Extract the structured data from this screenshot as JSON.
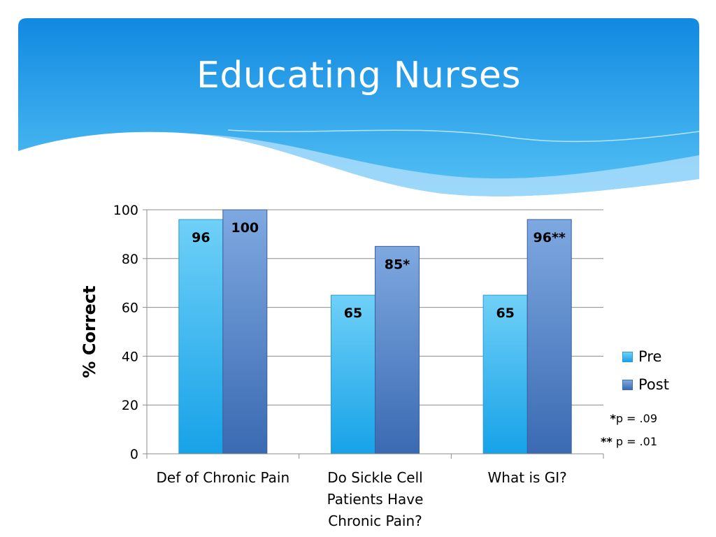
{
  "slide": {
    "title": "Educating Nurses",
    "banner_colors": {
      "top": "#1189e0",
      "bottom": "#55c2f5"
    }
  },
  "notes": [
    {
      "mark": "*",
      "text": "p = .09"
    },
    {
      "mark": "**",
      "text": " p = .01"
    }
  ],
  "chart_data": {
    "type": "bar",
    "categories": [
      "Def of Chronic Pain",
      "Do Sickle Cell Patients Have Chronic Pain?",
      "What is GI?"
    ],
    "category_lines": [
      [
        "Def of Chronic Pain"
      ],
      [
        "Do Sickle Cell",
        "Patients Have",
        "Chronic Pain?"
      ],
      [
        "What is GI?"
      ]
    ],
    "series": [
      {
        "name": "Pre",
        "values": [
          96,
          65,
          65
        ],
        "labels": [
          "96",
          "65",
          "65"
        ],
        "color_top": "#6fd0f7",
        "color_bottom": "#17a2e8"
      },
      {
        "name": "Post",
        "values": [
          100,
          85,
          96
        ],
        "labels": [
          "100",
          "85*",
          "96**"
        ],
        "color_top": "#7ea8e0",
        "color_bottom": "#3a6ab2"
      }
    ],
    "xlabel": "",
    "ylabel": "% Correct",
    "ylim": [
      0,
      100
    ],
    "yticks": [
      0,
      20,
      40,
      60,
      80,
      100
    ],
    "grid": true,
    "legend_position": "right"
  }
}
